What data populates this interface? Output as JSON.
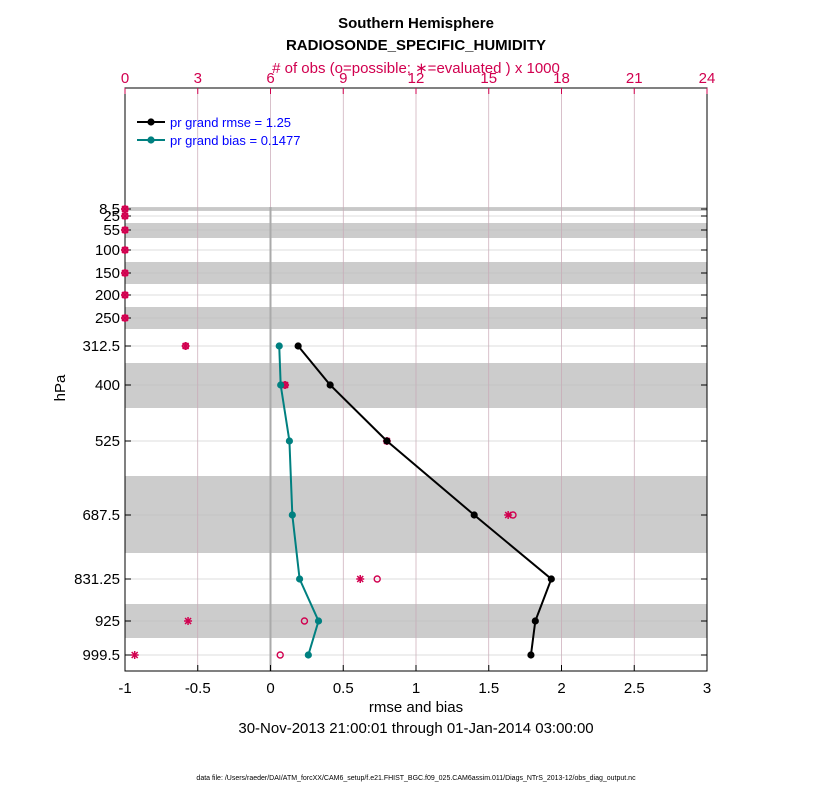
{
  "chart_data": {
    "type": "line",
    "title": "Southern Hemisphere",
    "subtitle": "RADIOSONDE_SPECIFIC_HUMIDITY",
    "top_axis_label": "# of obs (o=possible; ∗=evaluated ) x 1000",
    "xlabel": "rmse and bias",
    "ylabel": "hPa",
    "date_range": "30-Nov-2013 21:00:01 through 01-Jan-2014 03:00:00",
    "footer": "data file: /Users/raeder/DAI/ATM_forcXX/CAM6_setup/f.e21.FHIST_BGC.f09_025.CAM6assim.011/Diags_NTrS_2013-12/obs_diag_output.nc",
    "xlim": [
      -1,
      3
    ],
    "x_ticks": [
      "-1",
      "-0.5",
      "0",
      "0.5",
      "1",
      "1.5",
      "2",
      "2.5",
      "3"
    ],
    "top_xlim": [
      0,
      24
    ],
    "top_ticks": [
      "0",
      "3",
      "6",
      "9",
      "12",
      "15",
      "18",
      "21",
      "24"
    ],
    "levels": [
      "8.5",
      "25",
      "55",
      "100",
      "150",
      "200",
      "250",
      "312.5",
      "400",
      "525",
      "687.5",
      "831.25",
      "925",
      "999.5"
    ],
    "level_tick_labels": [
      "8.5",
      "25",
      "55",
      "100",
      "150",
      "200",
      "250",
      "312.5",
      "400",
      "525",
      "687.5",
      "831.25",
      "925",
      "999.5"
    ],
    "shaded_bands_hPa": [
      [
        5,
        12
      ],
      [
        40,
        70
      ],
      [
        125,
        175
      ],
      [
        225,
        275
      ],
      [
        350,
        450
      ],
      [
        600,
        775
      ],
      [
        875,
        975
      ]
    ],
    "series": [
      {
        "name": "rmse",
        "legend": "pr grand rmse = 1.25",
        "color": "#000000",
        "levels": [
          "312.5",
          "400",
          "525",
          "687.5",
          "831.25",
          "925",
          "999.5"
        ],
        "values": [
          0.19,
          0.41,
          0.8,
          1.4,
          1.93,
          1.82,
          1.79
        ]
      },
      {
        "name": "bias",
        "legend": "pr grand bias = 0.1477",
        "color": "#008080",
        "levels": [
          "312.5",
          "400",
          "525",
          "687.5",
          "831.25",
          "925",
          "999.5"
        ],
        "values": [
          0.06,
          0.07,
          0.13,
          0.15,
          0.2,
          0.33,
          0.26
        ]
      }
    ],
    "obs_possible": {
      "levels": [
        "8.5",
        "25",
        "55",
        "100",
        "150",
        "200",
        "250",
        "312.5",
        "400",
        "525",
        "687.5",
        "831.25",
        "925",
        "999.5"
      ],
      "values": [
        0,
        0,
        0,
        0,
        0,
        0,
        0,
        2.5,
        6.6,
        10.8,
        16.0,
        10.4,
        7.4,
        6.4
      ]
    },
    "obs_evaluated": {
      "levels": [
        "8.5",
        "25",
        "55",
        "100",
        "150",
        "200",
        "250",
        "312.5",
        "400",
        "525",
        "687.5",
        "831.25",
        "925",
        "999.5"
      ],
      "values": [
        0,
        0,
        0,
        0,
        0,
        0,
        0,
        2.5,
        6.6,
        10.8,
        15.8,
        9.7,
        2.6,
        0.4
      ]
    },
    "colors": {
      "obs": "#d1004f",
      "rmse": "#000000",
      "bias": "#008080",
      "band": "#cccccc",
      "grid": "#c8a6b4",
      "zero_line": "#aaaaaa"
    }
  }
}
